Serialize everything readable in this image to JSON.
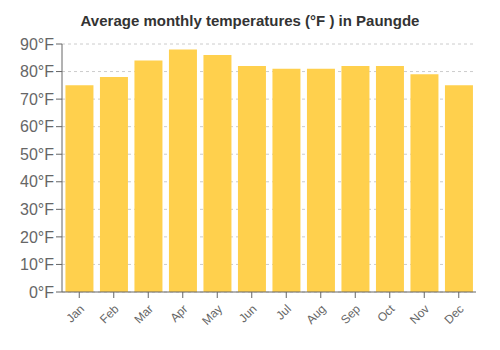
{
  "chart_data": {
    "type": "bar",
    "title": "Average monthly temperatures (°F ) in Paungde",
    "categories": [
      "Jan",
      "Feb",
      "Mar",
      "Apr",
      "May",
      "Jun",
      "Jul",
      "Aug",
      "Sep",
      "Oct",
      "Nov",
      "Dec"
    ],
    "values": [
      75,
      78,
      84,
      88,
      86,
      82,
      81,
      81,
      82,
      82,
      79,
      75
    ],
    "color": "#FFD04D",
    "ylim": [
      0,
      90
    ],
    "yticks": [
      {
        "value": 0,
        "label": "0°F"
      },
      {
        "value": 10,
        "label": "10°F"
      },
      {
        "value": 20,
        "label": "20°F"
      },
      {
        "value": 30,
        "label": "30°F"
      },
      {
        "value": 40,
        "label": "40°F"
      },
      {
        "value": 50,
        "label": "50°F"
      },
      {
        "value": 60,
        "label": "60°F"
      },
      {
        "value": 70,
        "label": "70°F"
      },
      {
        "value": 80,
        "label": "80°F"
      },
      {
        "value": 90,
        "label": "90°F"
      }
    ],
    "grid": true
  }
}
